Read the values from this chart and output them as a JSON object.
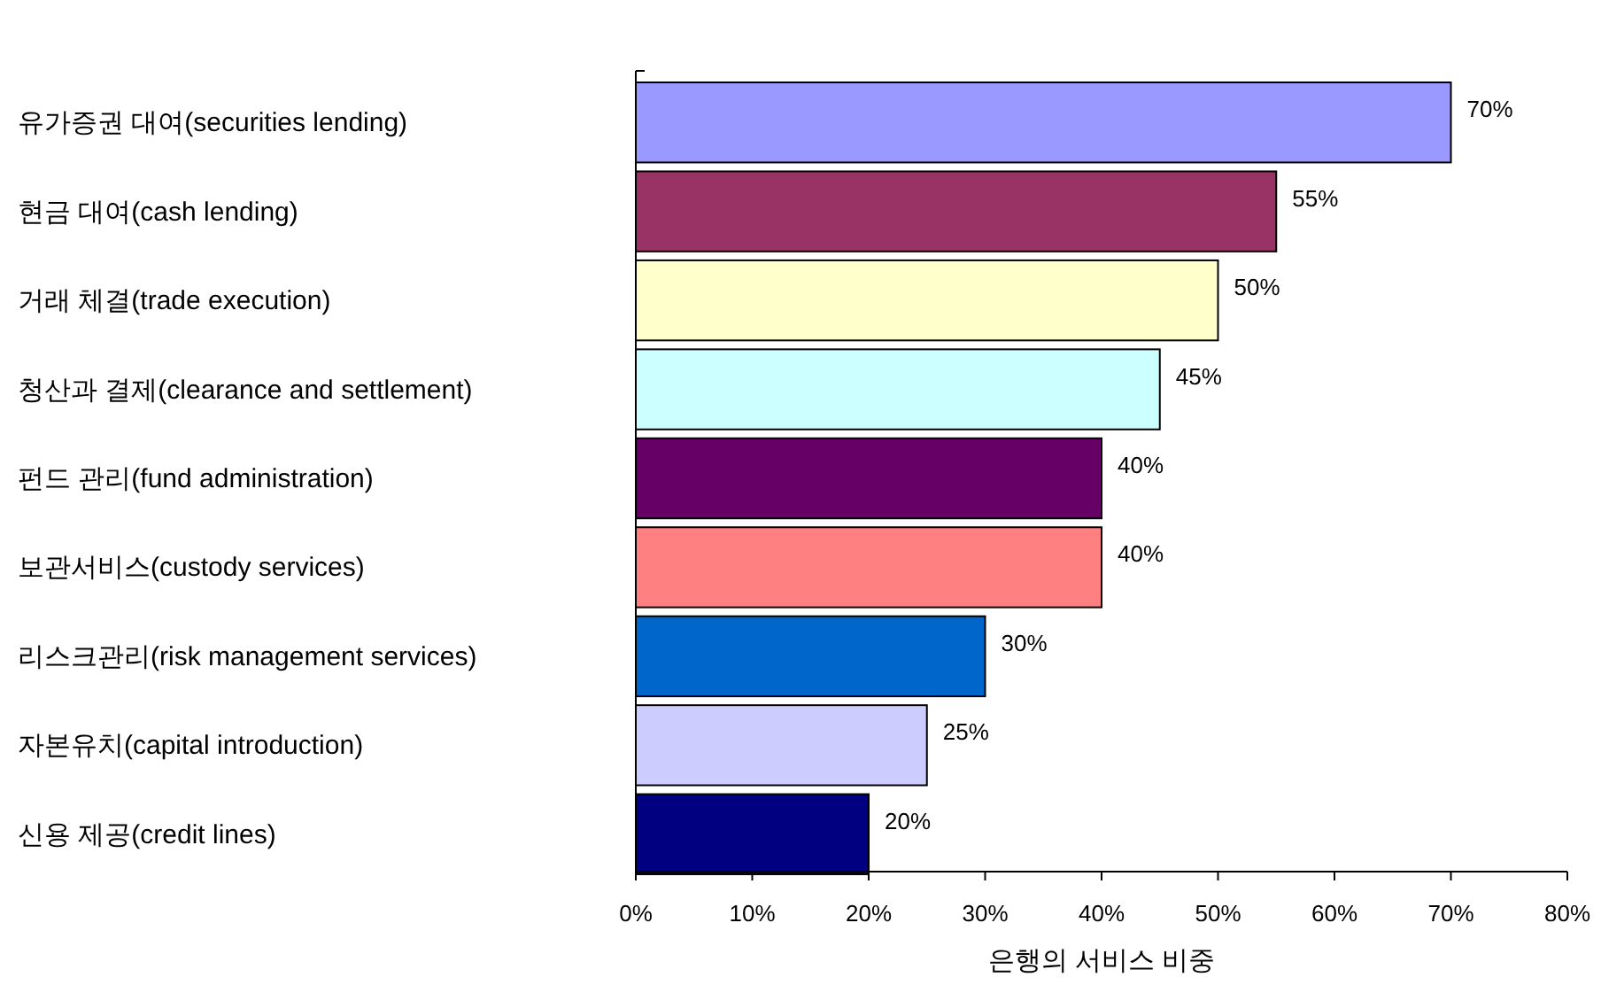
{
  "chart_data": {
    "type": "bar",
    "orientation": "horizontal",
    "xlabel": "은행의 서비스 비중",
    "categories": [
      "유가증권 대여(securities lending)",
      "현금 대여(cash lending)",
      "거래 체결(trade execution)",
      "청산과 결제(clearance and settlement)",
      "펀드 관리(fund administration)",
      "보관서비스(custody services)",
      "리스크관리(risk management services)",
      "자본유치(capital introduction)",
      "신용 제공(credit lines)"
    ],
    "values": [
      70,
      55,
      50,
      45,
      40,
      40,
      30,
      25,
      20
    ],
    "colors": [
      "#9999ff",
      "#993366",
      "#ffffcc",
      "#ccffff",
      "#660066",
      "#ff8080",
      "#0066cc",
      "#ccccff",
      "#000080"
    ],
    "value_labels": [
      "70%",
      "55%",
      "50%",
      "45%",
      "40%",
      "40%",
      "30%",
      "25%",
      "20%"
    ],
    "xlim": [
      0,
      80
    ],
    "xticks": [
      {
        "value": 0,
        "label": "0%"
      },
      {
        "value": 10,
        "label": "10%"
      },
      {
        "value": 20,
        "label": "20%"
      },
      {
        "value": 30,
        "label": "30%"
      },
      {
        "value": 40,
        "label": "40%"
      },
      {
        "value": 50,
        "label": "50%"
      },
      {
        "value": 60,
        "label": "60%"
      },
      {
        "value": 70,
        "label": "70%"
      },
      {
        "value": 80,
        "label": "80%"
      }
    ]
  }
}
